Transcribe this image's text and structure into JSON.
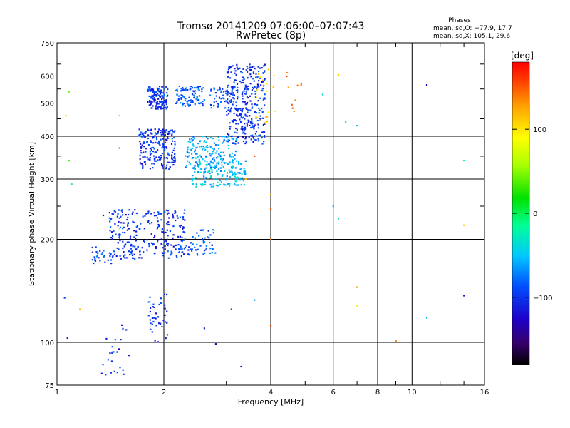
{
  "header": {
    "title": "Tromsø 20141209 07:06:00–07:07:43",
    "subtitle": "RwPretec (8p)"
  },
  "phases_box": {
    "title": "Phases",
    "line_o": "mean, sd,O: −77.9, 17.7",
    "line_x": "mean, sd,X: 105.1, 29.6"
  },
  "colorbar": {
    "unit_label": "[deg]",
    "ticks": [
      {
        "value": 100,
        "label": "100"
      },
      {
        "value": 0,
        "label": "0"
      },
      {
        "value": -100,
        "label": "−100"
      }
    ],
    "range": [
      -180,
      180
    ]
  },
  "chart_data": {
    "type": "scatter",
    "title": "Tromsø 20141209 07:06:00–07:07:43",
    "subtitle": "RwPretec (8p)",
    "xlabel": "Frequency [MHz]",
    "ylabel": "Stationary phase Virtual Height [km]",
    "x_scale": "log",
    "y_scale": "log",
    "xlim": [
      1,
      16
    ],
    "ylim": [
      75,
      750
    ],
    "x_ticks": [
      {
        "value": 1,
        "label": "1"
      },
      {
        "value": 2,
        "label": "2"
      },
      {
        "value": 4,
        "label": "4"
      },
      {
        "value": 6,
        "label": "6"
      },
      {
        "value": 8,
        "label": "8"
      },
      {
        "value": 10,
        "label": "10"
      },
      {
        "value": 16,
        "label": "16"
      }
    ],
    "x_gridlines": [
      2,
      4,
      6,
      8,
      10
    ],
    "x_minor_ticks": [
      3,
      5,
      7,
      9,
      12,
      14
    ],
    "y_ticks": [
      {
        "value": 75,
        "label": "75"
      },
      {
        "value": 100,
        "label": "100"
      },
      {
        "value": 200,
        "label": "200"
      },
      {
        "value": 300,
        "label": "300"
      },
      {
        "value": 400,
        "label": "400"
      },
      {
        "value": 500,
        "label": "500"
      },
      {
        "value": 600,
        "label": "600"
      },
      {
        "value": 750,
        "label": "750"
      }
    ],
    "y_gridlines": [
      100,
      200,
      300,
      400,
      500,
      600
    ],
    "grid": true,
    "color_variable": "phase [deg]",
    "clusters": [
      {
        "freq": [
          1.8,
          2.05
        ],
        "height": [
          480,
          560
        ],
        "phase": -100,
        "n": 140
      },
      {
        "freq": [
          2.15,
          2.6
        ],
        "height": [
          490,
          560
        ],
        "phase": -85,
        "n": 90
      },
      {
        "freq": [
          2.7,
          3.2
        ],
        "height": [
          480,
          560
        ],
        "phase": -90,
        "n": 60
      },
      {
        "freq": [
          3.0,
          3.85
        ],
        "height": [
          380,
          650
        ],
        "phase": -100,
        "n": 320
      },
      {
        "freq": [
          3.6,
          4.15
        ],
        "height": [
          430,
          640
        ],
        "phase": 115,
        "n": 22
      },
      {
        "freq": [
          4.3,
          5.0
        ],
        "height": [
          470,
          620
        ],
        "phase": 150,
        "n": 10
      },
      {
        "freq": [
          1.7,
          2.15
        ],
        "height": [
          320,
          420
        ],
        "phase": -100,
        "n": 200
      },
      {
        "freq": [
          2.3,
          3.2
        ],
        "height": [
          320,
          400
        ],
        "phase": -60,
        "n": 160
      },
      {
        "freq": [
          2.4,
          3.4
        ],
        "height": [
          285,
          340
        ],
        "phase": -50,
        "n": 140
      },
      {
        "freq": [
          1.4,
          2.3
        ],
        "height": [
          175,
          245
        ],
        "phase": -100,
        "n": 260
      },
      {
        "freq": [
          2.2,
          2.8
        ],
        "height": [
          180,
          215
        ],
        "phase": -85,
        "n": 60
      },
      {
        "freq": [
          1.25,
          1.45
        ],
        "height": [
          170,
          190
        ],
        "phase": -90,
        "n": 30
      },
      {
        "freq": [
          1.8,
          2.05
        ],
        "height": [
          100,
          140
        ],
        "phase": -100,
        "n": 40
      },
      {
        "freq": [
          1.3,
          1.6
        ],
        "height": [
          80,
          115
        ],
        "phase": -100,
        "n": 25
      }
    ],
    "scattered_points": [
      {
        "freq": 1.06,
        "height": 460,
        "phase": 110
      },
      {
        "freq": 1.08,
        "height": 540,
        "phase": 40
      },
      {
        "freq": 1.08,
        "height": 340,
        "phase": 30
      },
      {
        "freq": 1.1,
        "height": 290,
        "phase": -30
      },
      {
        "freq": 1.05,
        "height": 135,
        "phase": -90
      },
      {
        "freq": 1.16,
        "height": 125,
        "phase": 120
      },
      {
        "freq": 1.07,
        "height": 103,
        "phase": -110
      },
      {
        "freq": 1.5,
        "height": 460,
        "phase": 115
      },
      {
        "freq": 1.5,
        "height": 215,
        "phase": 110
      },
      {
        "freq": 1.5,
        "height": 370,
        "phase": 150
      },
      {
        "freq": 1.35,
        "height": 235,
        "phase": -120
      },
      {
        "freq": 5.6,
        "height": 530,
        "phase": -40
      },
      {
        "freq": 6.2,
        "height": 605,
        "phase": 110
      },
      {
        "freq": 6.5,
        "height": 440,
        "phase": -40
      },
      {
        "freq": 7.0,
        "height": 430,
        "phase": -45
      },
      {
        "freq": 6.0,
        "height": 250,
        "phase": -60
      },
      {
        "freq": 6.2,
        "height": 230,
        "phase": -30
      },
      {
        "freq": 7.0,
        "height": 145,
        "phase": 130
      },
      {
        "freq": 7.0,
        "height": 128,
        "phase": 95
      },
      {
        "freq": 9.0,
        "height": 101,
        "phase": 140
      },
      {
        "freq": 11.0,
        "height": 565,
        "phase": -130
      },
      {
        "freq": 11.0,
        "height": 118,
        "phase": -50
      },
      {
        "freq": 14.0,
        "height": 340,
        "phase": -30
      },
      {
        "freq": 14.0,
        "height": 220,
        "phase": 110
      },
      {
        "freq": 14.0,
        "height": 137,
        "phase": -120
      },
      {
        "freq": 4.0,
        "height": 270,
        "phase": 110
      },
      {
        "freq": 4.0,
        "height": 245,
        "phase": 150
      },
      {
        "freq": 4.0,
        "height": 200,
        "phase": 140
      },
      {
        "freq": 3.6,
        "height": 350,
        "phase": 150
      },
      {
        "freq": 3.4,
        "height": 300,
        "phase": 120
      },
      {
        "freq": 2.8,
        "height": 99,
        "phase": -140
      },
      {
        "freq": 3.3,
        "height": 85,
        "phase": -140
      },
      {
        "freq": 3.6,
        "height": 133,
        "phase": -60
      },
      {
        "freq": 3.1,
        "height": 125,
        "phase": -100
      },
      {
        "freq": 2.6,
        "height": 110,
        "phase": -110
      },
      {
        "freq": 4.0,
        "height": 112,
        "phase": 150
      }
    ]
  }
}
